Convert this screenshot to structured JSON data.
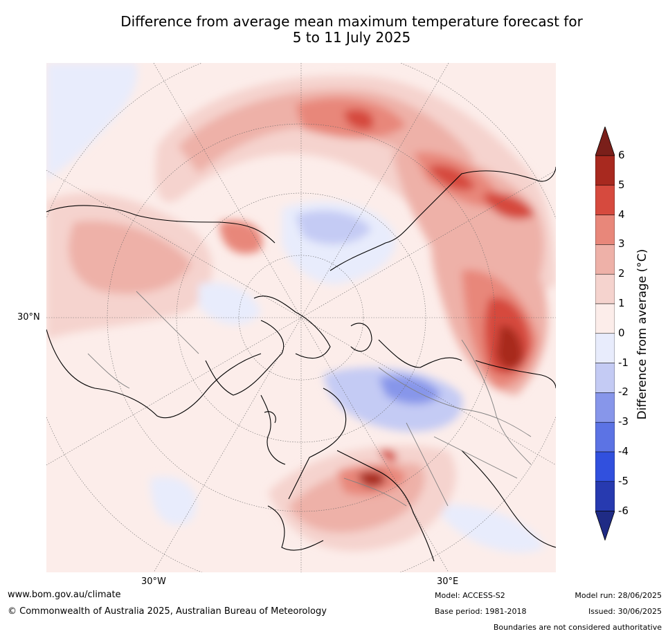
{
  "title_line1": "Difference from average mean maximum temperature forecast for",
  "title_line2": "5 to 11 July 2025",
  "map": {
    "lat_label": "30°N",
    "lon_labels": [
      "30°W",
      "30°E"
    ],
    "projection": "north-polar-stereographic",
    "boundaries_colors": {
      "coast": "#000000",
      "borders": "#808080"
    }
  },
  "colorbar": {
    "label": "Difference from average (°C)",
    "label_main": "Difference from average (",
    "label_unit": "°C)",
    "ticks": [
      "6",
      "5",
      "4",
      "3",
      "2",
      "1",
      "0",
      "-1",
      "-2",
      "-3",
      "-4",
      "-5",
      "-6"
    ],
    "colors": [
      "#7a1f1a",
      "#a8291f",
      "#d64a3e",
      "#e8877a",
      "#eeb1a8",
      "#f5d3ce",
      "#fcedea",
      "#e8ecfc",
      "#c4cbf4",
      "#8796ea",
      "#5c73e4",
      "#3150de",
      "#273ab0",
      "#1f2b85"
    ]
  },
  "footer": {
    "website": "www.bom.gov.au/climate",
    "copyright": "© Commonwealth of Australia 2025, Australian Bureau of Meteorology",
    "model": "Model: ACCESS-S2",
    "base_period": "Base period: 1981-2018",
    "model_run": "Model run: 28/06/2025",
    "issued": "Issued: 30/06/2025",
    "disclaimer": "Boundaries are not considered authoritative"
  }
}
